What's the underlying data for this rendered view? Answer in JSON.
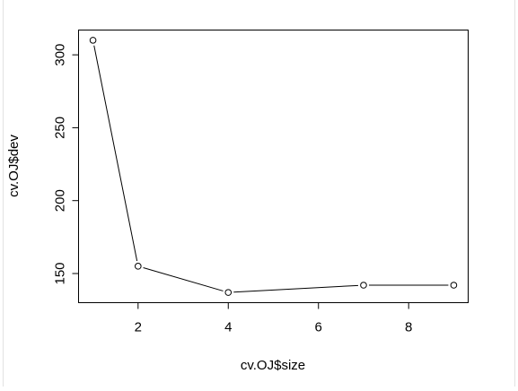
{
  "chart_data": {
    "type": "line",
    "title": "",
    "xlabel": "cv.OJ$size",
    "ylabel": "cv.OJ$dev",
    "x": [
      1,
      2,
      4,
      7,
      9
    ],
    "y": [
      310,
      155,
      137,
      142,
      142
    ],
    "xlim": [
      0.68,
      9.32
    ],
    "ylim": [
      130,
      317
    ],
    "xticks": [
      2,
      4,
      6,
      8
    ],
    "xtick_labels": [
      "2",
      "4",
      "6",
      "8"
    ],
    "yticks": [
      150,
      200,
      250,
      300
    ],
    "ytick_labels": [
      "150",
      "200",
      "250",
      "300"
    ],
    "grid": false,
    "legend": "none",
    "line_color": "#000000",
    "marker": "open-circle"
  }
}
